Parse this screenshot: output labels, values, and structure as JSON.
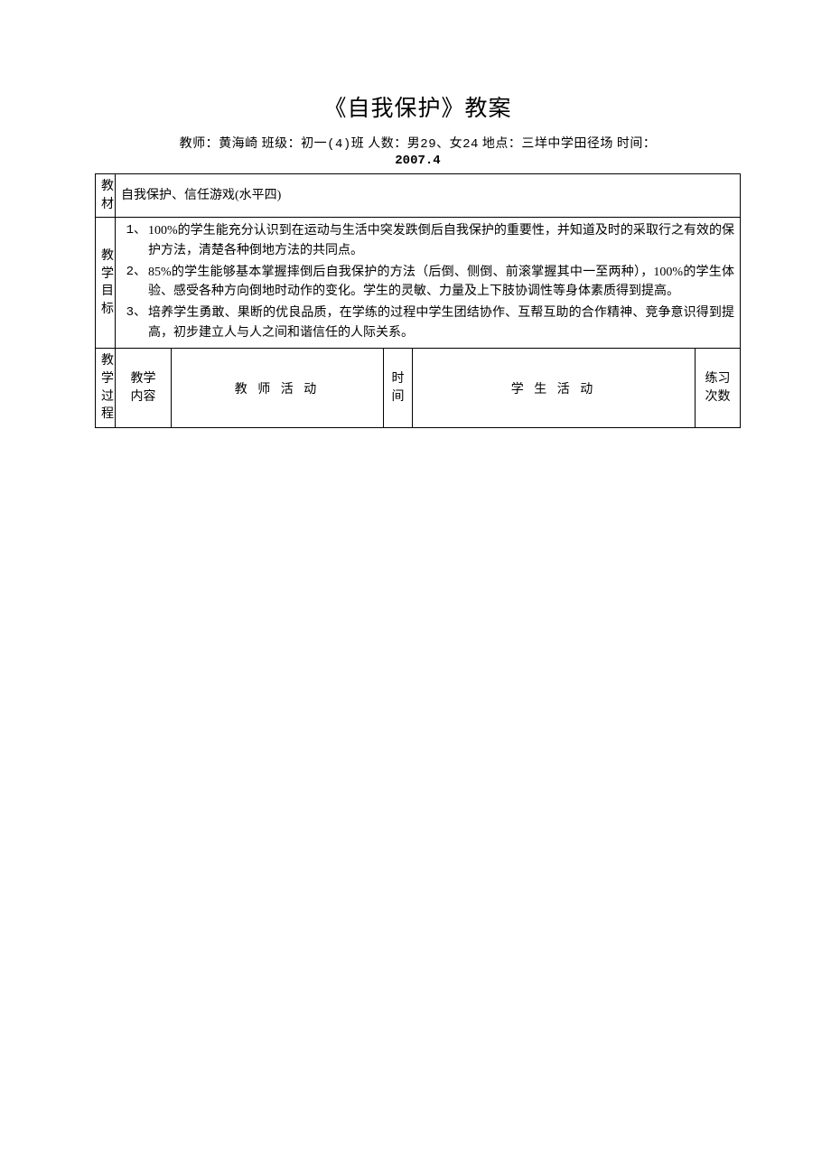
{
  "title": "《自我保护》教案",
  "subtitle_prefix": "教师：黄海崎 班级：初一",
  "subtitle_class_no": "(4)",
  "subtitle_mid1": "班 人数：男",
  "subtitle_male": "29",
  "subtitle_sep": "、女",
  "subtitle_female": "24",
  "subtitle_suffix": " 地点：三垟中学田径场 时间：",
  "date": "2007.4",
  "row_material_label_1": "教",
  "row_material_label_2": "材",
  "material_text": "自我保护、信任游戏(水平四)",
  "row_goal_label_1": "教",
  "row_goal_label_2": "学",
  "row_goal_label_3": "目",
  "row_goal_label_4": "标",
  "goals": [
    {
      "num": "1、",
      "text": "100%的学生能充分认识到在运动与生活中突发跌倒后自我保护的重要性，并知道及时的采取行之有效的保护方法，清楚各种倒地方法的共同点。"
    },
    {
      "num": "2、",
      "text": "85%的学生能够基本掌握摔倒后自我保护的方法（后倒、侧倒、前滚掌握其中一至两种），100%的学生体验、感受各种方向倒地时动作的变化。学生的灵敏、力量及上下肢协调性等身体素质得到提高。"
    },
    {
      "num": "3、",
      "text": "培养学生勇敢、果断的优良品质，在学练的过程中学生团结协作、互帮互助的合作精神、竞争意识得到提高，初步建立人与人之间和谐信任的人际关系。"
    }
  ],
  "row_process_label_1": "教",
  "row_process_label_2": "学",
  "row_process_label_3": "过",
  "row_process_label_4": "程",
  "hdr_content_1": "教学",
  "hdr_content_2": "内容",
  "hdr_teacher": "教 师 活 动",
  "hdr_time_1": "时",
  "hdr_time_2": "间",
  "hdr_student": "学 生 活 动",
  "hdr_count_1": "练习",
  "hdr_count_2": "次数"
}
